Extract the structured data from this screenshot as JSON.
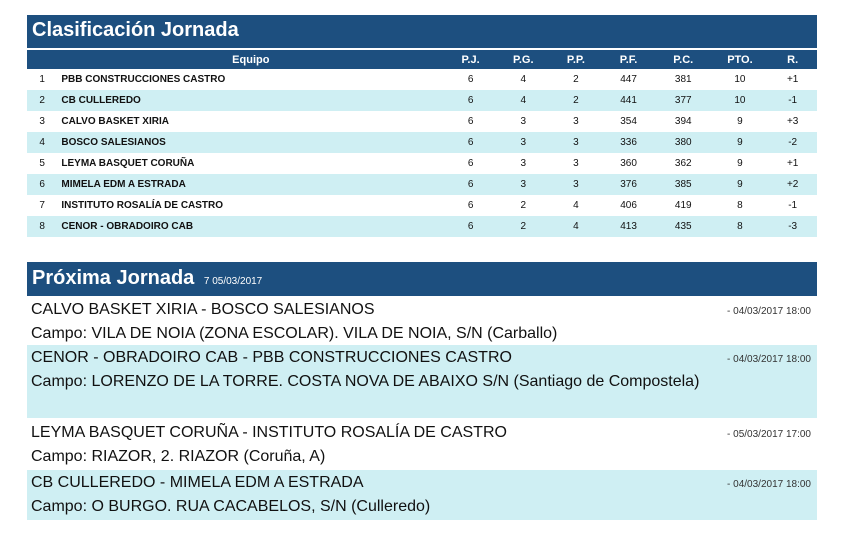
{
  "standings": {
    "title": "Clasificación Jornada",
    "columns": [
      "Equipo",
      "P.J.",
      "P.G.",
      "P.P.",
      "P.F.",
      "P.C.",
      "PTO.",
      "R."
    ],
    "rows": [
      {
        "pos": "1",
        "team": "PBB CONSTRUCCIONES CASTRO",
        "pj": "6",
        "pg": "4",
        "pp": "2",
        "pf": "447",
        "pc": "381",
        "pto": "10",
        "r": "+1"
      },
      {
        "pos": "2",
        "team": "CB CULLEREDO",
        "pj": "6",
        "pg": "4",
        "pp": "2",
        "pf": "441",
        "pc": "377",
        "pto": "10",
        "r": "-1"
      },
      {
        "pos": "3",
        "team": "CALVO BASKET XIRIA",
        "pj": "6",
        "pg": "3",
        "pp": "3",
        "pf": "354",
        "pc": "394",
        "pto": "9",
        "r": "+3"
      },
      {
        "pos": "4",
        "team": "BOSCO SALESIANOS",
        "pj": "6",
        "pg": "3",
        "pp": "3",
        "pf": "336",
        "pc": "380",
        "pto": "9",
        "r": "-2"
      },
      {
        "pos": "5",
        "team": "LEYMA BASQUET CORUÑA",
        "pj": "6",
        "pg": "3",
        "pp": "3",
        "pf": "360",
        "pc": "362",
        "pto": "9",
        "r": "+1"
      },
      {
        "pos": "6",
        "team": "MIMELA EDM A ESTRADA",
        "pj": "6",
        "pg": "3",
        "pp": "3",
        "pf": "376",
        "pc": "385",
        "pto": "9",
        "r": "+2"
      },
      {
        "pos": "7",
        "team": "INSTITUTO ROSALÍA DE CASTRO",
        "pj": "6",
        "pg": "2",
        "pp": "4",
        "pf": "406",
        "pc": "419",
        "pto": "8",
        "r": "-1"
      },
      {
        "pos": "8",
        "team": "CENOR - OBRADOIRO CAB",
        "pj": "6",
        "pg": "2",
        "pp": "4",
        "pf": "413",
        "pc": "435",
        "pto": "8",
        "r": "-3"
      }
    ]
  },
  "next": {
    "title": "Próxima Jornada",
    "date": "7 05/03/2017",
    "matches": [
      {
        "teams": "CALVO BASKET XIRIA - BOSCO SALESIANOS",
        "venue": "Campo: VILA DE NOIA (ZONA ESCOLAR). VILA DE NOIA, S/N (Carballo)",
        "when": "-   04/03/2017  18:00"
      },
      {
        "teams": "CENOR - OBRADOIRO CAB - PBB CONSTRUCCIONES CASTRO",
        "venue": "Campo: LORENZO DE LA TORRE. COSTA NOVA DE ABAIXO S/N (Santiago de Compostela)",
        "when": "-   04/03/2017  18:00"
      },
      {
        "teams": "LEYMA BASQUET CORUÑA - INSTITUTO ROSALÍA DE CASTRO",
        "venue": "Campo: RIAZOR, 2. RIAZOR (Coruña, A)",
        "when": "-   05/03/2017  17:00"
      },
      {
        "teams": "CB CULLEREDO - MIMELA EDM A ESTRADA",
        "venue": "Campo: O BURGO. RUA CACABELOS, S/N (Culleredo)",
        "when": "-   04/03/2017  18:00"
      }
    ]
  },
  "colors": {
    "header": "#1d4f7f",
    "row_alt": "#cfeff3",
    "up": "#2a33b8",
    "down": "#e02525"
  }
}
